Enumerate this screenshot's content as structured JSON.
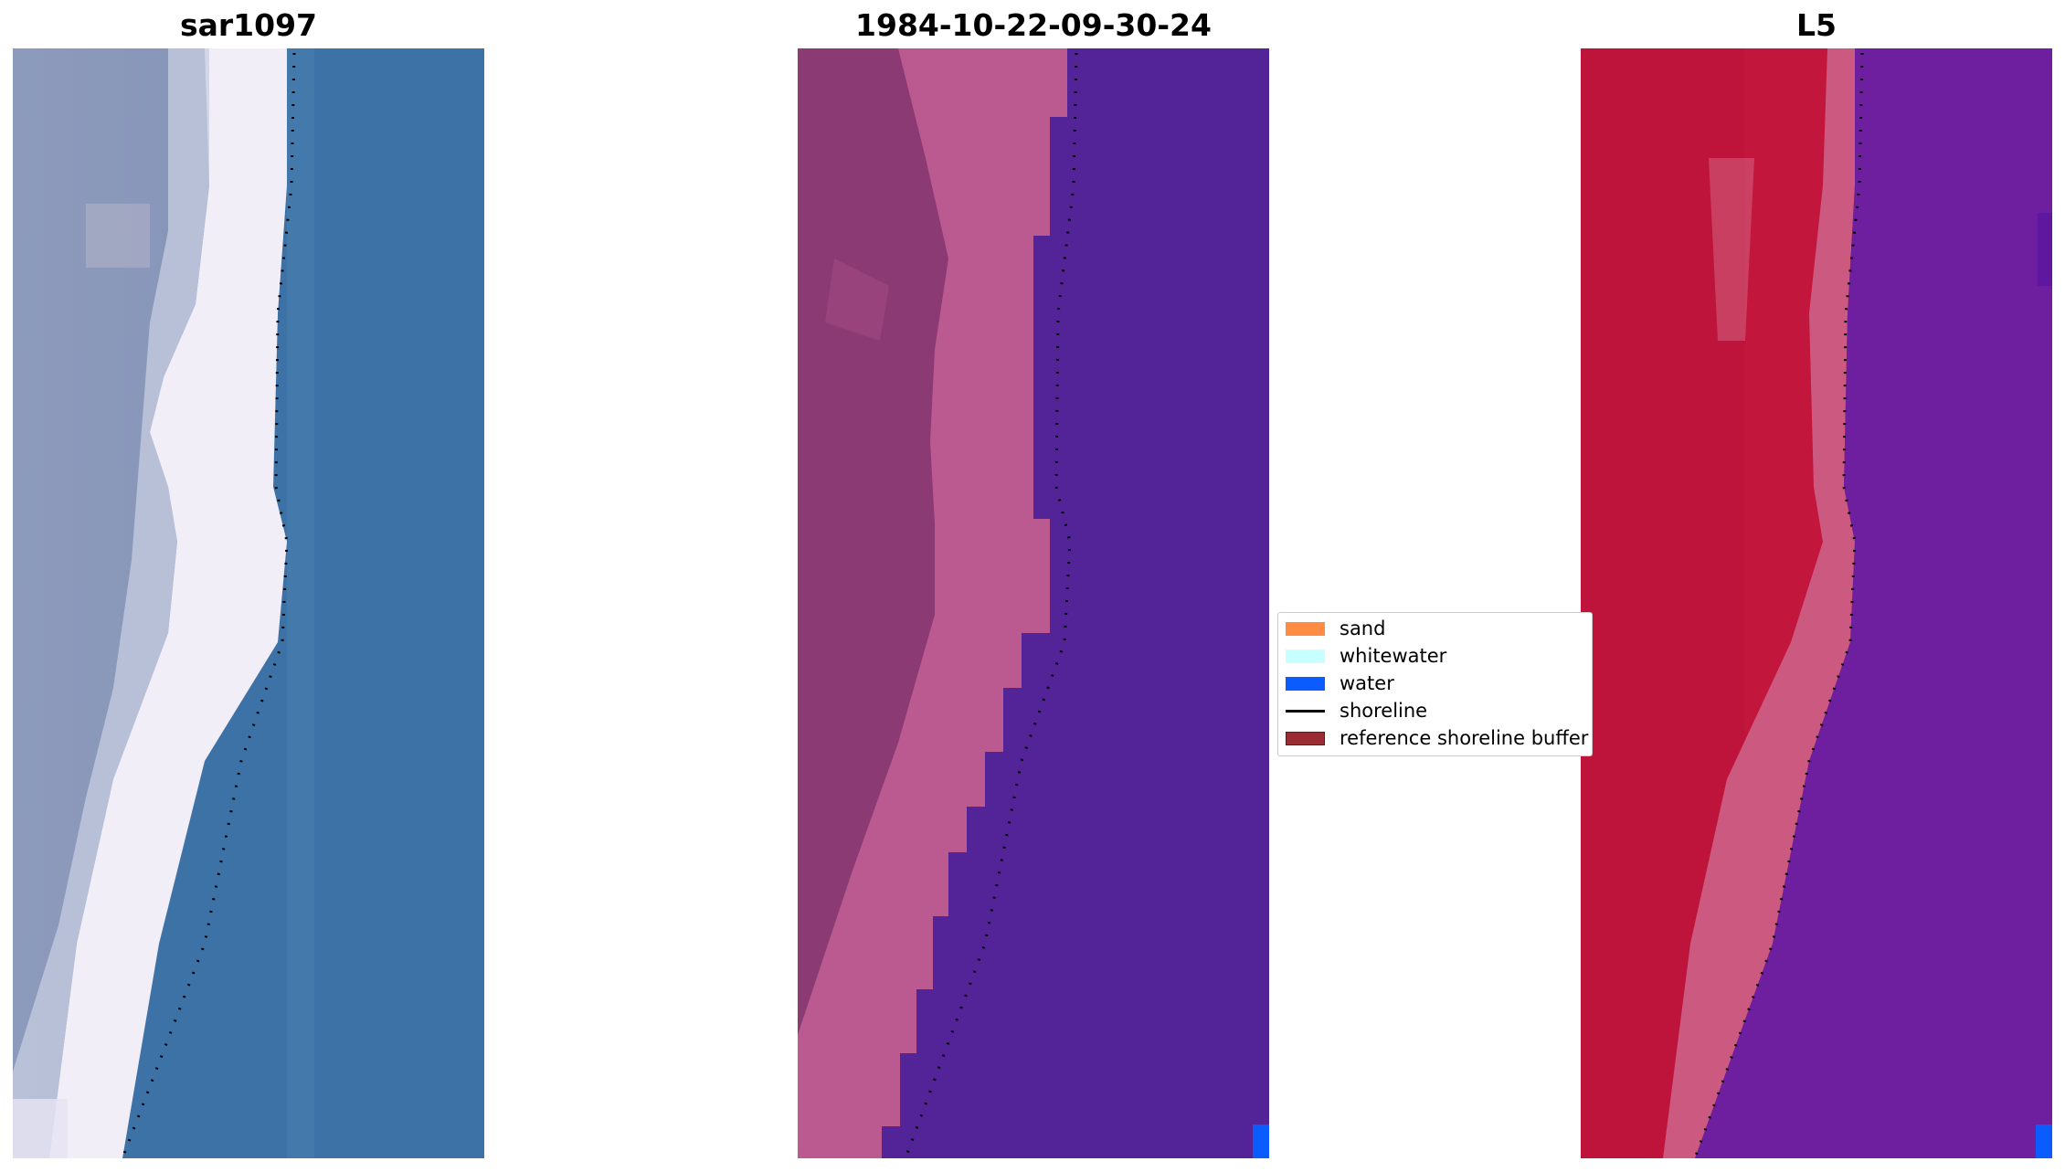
{
  "panels": [
    {
      "title": "sar1097"
    },
    {
      "title": "1984-10-22-09-30-24"
    },
    {
      "title": "L5"
    }
  ],
  "legend": {
    "items": [
      {
        "label": "sand",
        "kind": "patch",
        "color": "#ff8c42"
      },
      {
        "label": "whitewater",
        "kind": "patch",
        "color": "#c8ffff"
      },
      {
        "label": "water",
        "kind": "patch",
        "color": "#0a5cff"
      },
      {
        "label": "shoreline",
        "kind": "line",
        "color": "#000000"
      },
      {
        "label": "reference shoreline buffer",
        "kind": "patch",
        "color": "#9a2d33"
      }
    ]
  },
  "colors": {
    "rgb_sand": "#dfe6f2",
    "rgb_land": "#8a97ba",
    "rgb_water": "#3d72a6",
    "class_land": "#8b3a74",
    "class_sand": "#bb5a90",
    "class_water": "#532398",
    "class_water_pixel": "#0a5cff",
    "false_land": "#c2163c",
    "false_sand": "#cc5a80",
    "false_water": "#6e1fa0",
    "shoreline": "#000000"
  }
}
